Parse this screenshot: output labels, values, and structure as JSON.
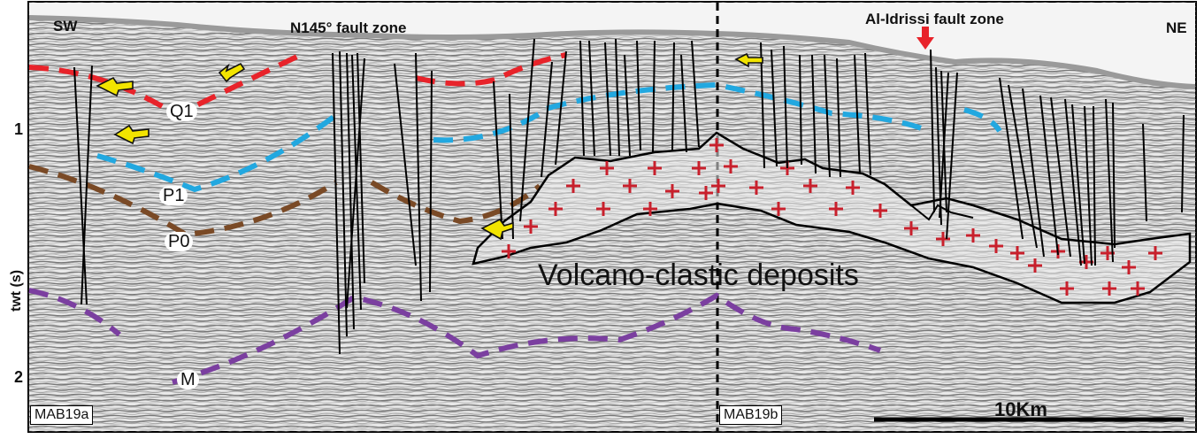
{
  "section": {
    "left_end": "SW",
    "right_end": "NE",
    "fault_zone_1": "N145° fault zone",
    "fault_zone_2": "Al-Idrissi fault zone",
    "axis_label": "twt (s)",
    "axis_ticks": [
      "1",
      "2"
    ],
    "horizons": [
      {
        "name": "Q1",
        "color": "#e8232a"
      },
      {
        "name": "P1",
        "color": "#22a8e0"
      },
      {
        "name": "P0",
        "color": "#7a4a26"
      },
      {
        "name": "M",
        "color": "#7b3fa0"
      }
    ],
    "unit_label": "Volcano-clastic deposits",
    "line_tags": [
      "MAB19a",
      "MAB19b"
    ],
    "scale_label": "10Km",
    "colors": {
      "volcanic_cross": "#c8202c",
      "fault_arrow": "#e8232a",
      "motion_arrow": "#f2e400",
      "fault_line": "#000000",
      "seafloor": "#d8d8d8"
    }
  }
}
